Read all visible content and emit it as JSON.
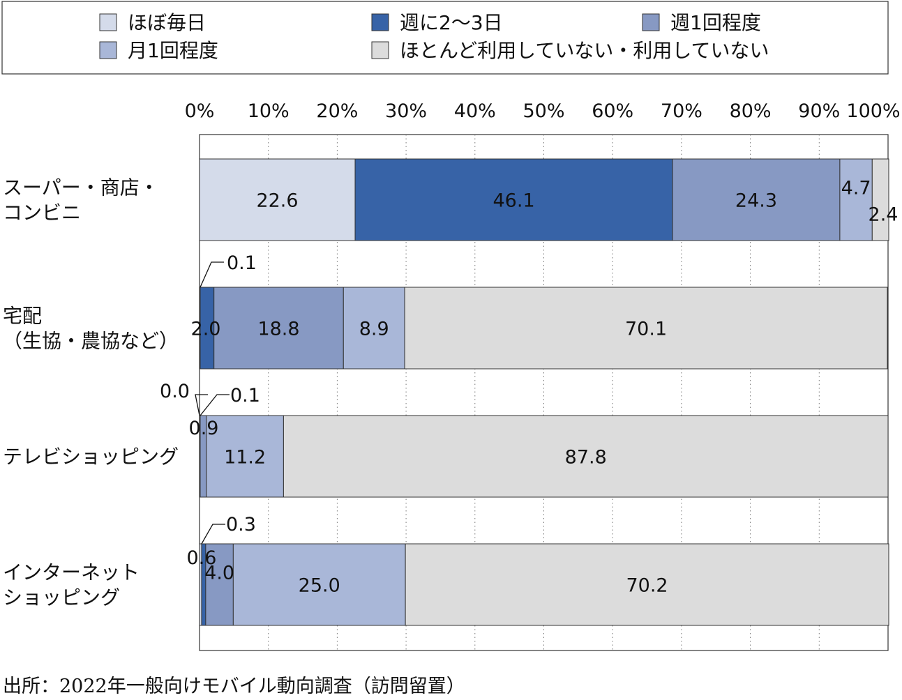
{
  "colors": {
    "ほぼ毎日": "#d4dbea",
    "週に2～3日": "#3763a7",
    "週1回程度": "#8799c3",
    "月1回程度": "#a9b7d8",
    "ほとんど利用していない・利用していない": "#dcdcdc"
  },
  "chart_data": {
    "type": "bar",
    "orientation": "horizontal",
    "stacked": true,
    "xlim": [
      0,
      100
    ],
    "x_ticks": [
      "0%",
      "10%",
      "20%",
      "30%",
      "40%",
      "50%",
      "60%",
      "70%",
      "80%",
      "90%",
      "100%"
    ],
    "grid": "vertical dotted",
    "legend_position": "top",
    "categories": [
      [
        "スーパー・商店・",
        "コンビニ"
      ],
      [
        "宅配",
        "（生協・農協など）"
      ],
      [
        "テレビショッピング"
      ],
      [
        "インターネット",
        "ショッピング"
      ]
    ],
    "series": [
      {
        "name": "ほぼ毎日",
        "values": [
          22.6,
          0.1,
          0.0,
          0.3
        ]
      },
      {
        "name": "週に2～3日",
        "values": [
          46.1,
          2.0,
          0.1,
          0.6
        ]
      },
      {
        "name": "週1回程度",
        "values": [
          24.3,
          18.8,
          0.9,
          4.0
        ]
      },
      {
        "name": "月1回程度",
        "values": [
          4.7,
          8.9,
          11.2,
          25.0
        ]
      },
      {
        "name": "ほとんど利用していない・利用していない",
        "values": [
          2.4,
          70.1,
          87.8,
          70.2
        ]
      }
    ]
  },
  "source": "出所：2022年一般向けモバイル動向調査（訪問留置）"
}
